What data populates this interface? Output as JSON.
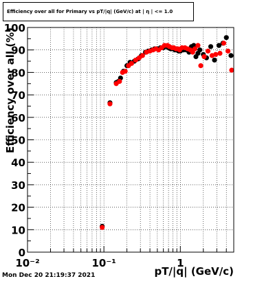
{
  "chart_data": {
    "type": "scatter",
    "title": "Efficiency over all for Primary vs pT/|q| (GeV/c) at | η | <= 1.0",
    "xlabel": "pT/|q| (GeV/c)",
    "ylabel": "Efficiency over all (%)",
    "xscale": "log",
    "xlim": [
      0.01,
      5.0
    ],
    "ylim": [
      0,
      100
    ],
    "grid": true,
    "xtick_labels": [
      "10⁻²",
      "10⁻¹",
      "1"
    ],
    "ytick_labels": [
      "0",
      "10",
      "20",
      "30",
      "40",
      "50",
      "60",
      "70",
      "80",
      "90",
      "100"
    ],
    "series": [
      {
        "color": "#000000",
        "points": [
          [
            0.095,
            11.5
          ],
          [
            0.12,
            66.5
          ],
          [
            0.145,
            75.5
          ],
          [
            0.155,
            76.0
          ],
          [
            0.165,
            77.5
          ],
          [
            0.18,
            80.5
          ],
          [
            0.2,
            83.0
          ],
          [
            0.22,
            84.5
          ],
          [
            0.25,
            85.0
          ],
          [
            0.28,
            86.0
          ],
          [
            0.31,
            87.5
          ],
          [
            0.35,
            89.0
          ],
          [
            0.38,
            89.5
          ],
          [
            0.42,
            90.0
          ],
          [
            0.46,
            90.5
          ],
          [
            0.5,
            90.5
          ],
          [
            0.55,
            91.0
          ],
          [
            0.6,
            91.0
          ],
          [
            0.65,
            91.5
          ],
          [
            0.7,
            91.0
          ],
          [
            0.75,
            90.5
          ],
          [
            0.8,
            90.5
          ],
          [
            0.85,
            90.0
          ],
          [
            0.9,
            90.0
          ],
          [
            0.95,
            89.5
          ],
          [
            1.0,
            89.5
          ],
          [
            1.1,
            90.0
          ],
          [
            1.2,
            90.0
          ],
          [
            1.3,
            89.0
          ],
          [
            1.4,
            91.5
          ],
          [
            1.5,
            92.0
          ],
          [
            1.6,
            87.0
          ],
          [
            1.7,
            88.5
          ],
          [
            1.8,
            90.0
          ],
          [
            2.0,
            88.0
          ],
          [
            2.2,
            86.5
          ],
          [
            2.5,
            91.5
          ],
          [
            2.8,
            85.5
          ],
          [
            3.2,
            92.0
          ],
          [
            3.6,
            93.0
          ],
          [
            4.0,
            95.5
          ],
          [
            4.6,
            87.5
          ]
        ]
      },
      {
        "color": "#ff0000",
        "points": [
          [
            0.095,
            11.0
          ],
          [
            0.12,
            66.0
          ],
          [
            0.145,
            75.0
          ],
          [
            0.16,
            76.0
          ],
          [
            0.175,
            80.0
          ],
          [
            0.19,
            80.5
          ],
          [
            0.21,
            83.0
          ],
          [
            0.23,
            84.0
          ],
          [
            0.26,
            85.5
          ],
          [
            0.29,
            86.5
          ],
          [
            0.32,
            87.5
          ],
          [
            0.36,
            89.0
          ],
          [
            0.4,
            89.5
          ],
          [
            0.44,
            90.0
          ],
          [
            0.48,
            90.5
          ],
          [
            0.52,
            90.0
          ],
          [
            0.57,
            91.0
          ],
          [
            0.62,
            92.0
          ],
          [
            0.68,
            92.0
          ],
          [
            0.72,
            91.5
          ],
          [
            0.78,
            91.0
          ],
          [
            0.82,
            91.0
          ],
          [
            0.88,
            90.5
          ],
          [
            0.93,
            90.5
          ],
          [
            0.98,
            90.0
          ],
          [
            1.05,
            91.0
          ],
          [
            1.15,
            91.0
          ],
          [
            1.25,
            90.5
          ],
          [
            1.35,
            90.0
          ],
          [
            1.45,
            89.0
          ],
          [
            1.55,
            90.5
          ],
          [
            1.7,
            92.0
          ],
          [
            1.85,
            83.0
          ],
          [
            2.05,
            87.0
          ],
          [
            2.3,
            89.5
          ],
          [
            2.6,
            87.5
          ],
          [
            2.9,
            88.0
          ],
          [
            3.3,
            88.5
          ],
          [
            3.7,
            93.0
          ],
          [
            4.2,
            89.5
          ],
          [
            4.7,
            81.0
          ]
        ]
      }
    ]
  },
  "footer": {
    "timestamp": "Mon Dec 20 21:19:37 2021"
  }
}
